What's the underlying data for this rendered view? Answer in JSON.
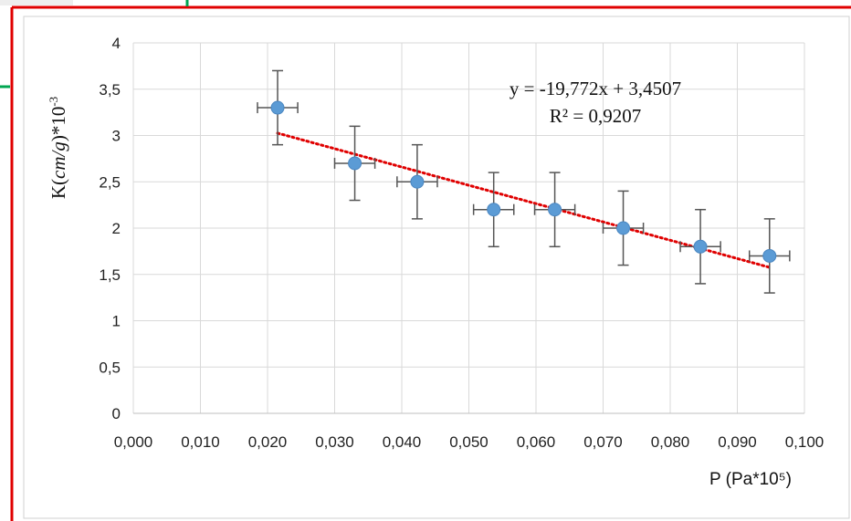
{
  "colors": {
    "point": "#5b9bd5",
    "trendline": "#e00000",
    "error_bar": "#555555",
    "grid": "#d9d9d9",
    "frame_red": "#e00000",
    "frame_green": "#00a651"
  },
  "chart_data": {
    "type": "scatter",
    "xlabel": "P (Pa*10⁵)",
    "ylabel": "K(cm/g)*10⁻³",
    "ylabel_prefix": "K(",
    "ylabel_italic": "cm/g",
    "ylabel_suffix": ")*10",
    "ylabel_exponent": "-3",
    "xlim": [
      0,
      0.1
    ],
    "ylim": [
      0,
      4
    ],
    "x_ticks": [
      "0,000",
      "0,010",
      "0,020",
      "0,030",
      "0,040",
      "0,050",
      "0,060",
      "0,070",
      "0,080",
      "0,090",
      "0,100"
    ],
    "y_ticks": [
      "0",
      "0,5",
      "1",
      "1,5",
      "2",
      "2,5",
      "3",
      "3,5",
      "4"
    ],
    "grid": true,
    "legend": "none",
    "points": [
      {
        "x": 0.0215,
        "y": 3.3
      },
      {
        "x": 0.033,
        "y": 2.7
      },
      {
        "x": 0.0423,
        "y": 2.5
      },
      {
        "x": 0.0537,
        "y": 2.2
      },
      {
        "x": 0.0628,
        "y": 2.2
      },
      {
        "x": 0.073,
        "y": 2.0
      },
      {
        "x": 0.0845,
        "y": 1.8
      },
      {
        "x": 0.0948,
        "y": 1.7
      }
    ],
    "error_bars": {
      "x_plus_minus": 0.003,
      "y_plus_minus": 0.4
    },
    "trendline": {
      "type": "linear",
      "slope": -19.772,
      "intercept": 3.4507,
      "equation": "y = -19,772x + 3,4507",
      "r_squared": "R² = 0,9207"
    }
  }
}
